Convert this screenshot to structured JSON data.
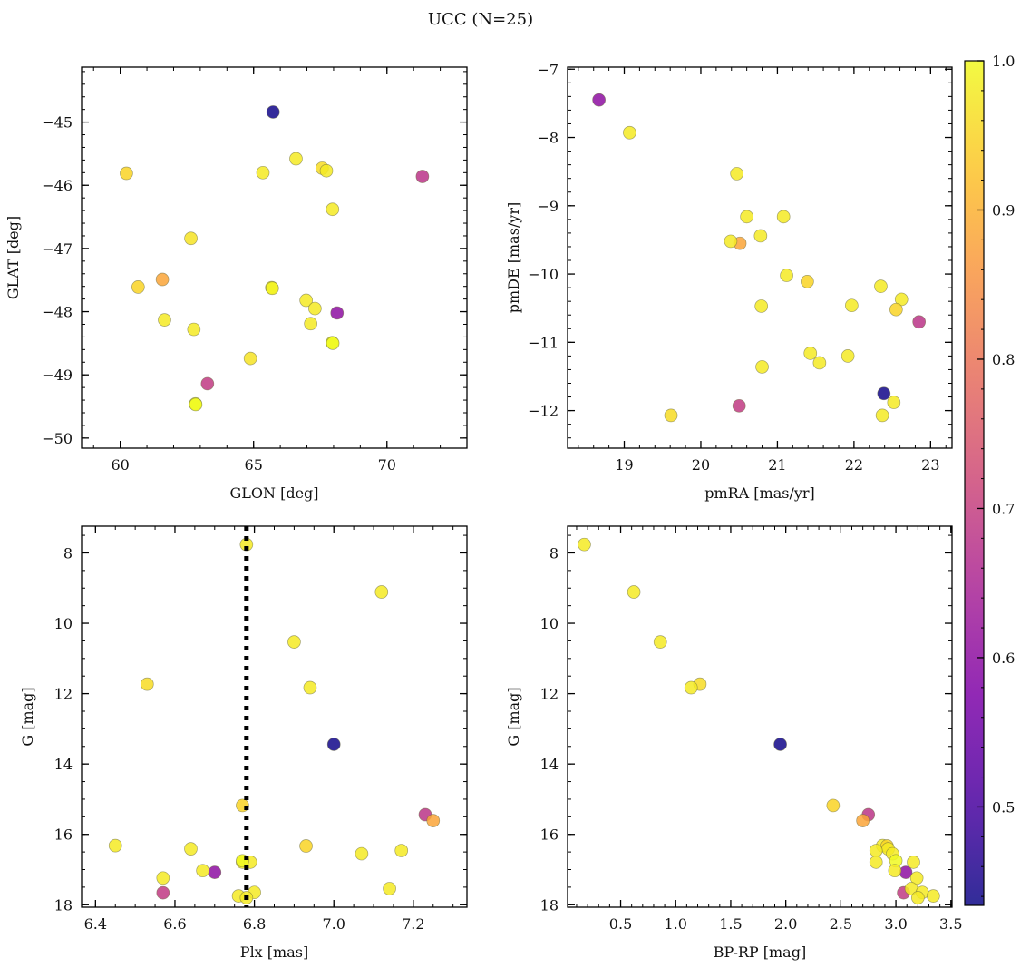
{
  "figure": {
    "title": "UCC (N=25)"
  },
  "colorbar": {
    "cmap": "plasma",
    "range": [
      0.434,
      1.0
    ],
    "ticks": [
      0.5,
      0.6,
      0.7,
      0.8,
      0.9,
      1.0
    ],
    "tick_labels": [
      "0.5",
      "0.6",
      "0.7",
      "0.8",
      "0.9",
      "1.0"
    ]
  },
  "chart_data": [
    {
      "type": "scatter",
      "xlabel": "GLON [deg]",
      "ylabel": "GLAT [deg]",
      "xlim": [
        58.55,
        73.0
      ],
      "ylim": [
        -50.16,
        -44.13
      ],
      "xticks": [
        60,
        65,
        70
      ],
      "xtick_labels": [
        "60",
        "65",
        "70"
      ],
      "yticks": [
        -50,
        -49,
        -48,
        -47,
        -46,
        -45
      ],
      "ytick_labels": [
        "−50",
        "−49",
        "−48",
        "−47",
        "−46",
        "−45"
      ],
      "grid": false,
      "x": [
        65.73,
        68.13,
        71.33,
        63.27,
        61.58,
        60.23,
        65.35,
        66.59,
        67.57,
        67.73,
        67.96,
        62.65,
        60.67,
        65.68,
        65.7,
        66.97,
        67.3,
        61.66,
        67.14,
        62.76,
        67.95,
        67.97,
        64.88,
        62.82,
        62.83
      ],
      "y": [
        -44.84,
        -48.02,
        -45.86,
        -49.14,
        -47.49,
        -45.81,
        -45.8,
        -45.58,
        -45.73,
        -45.77,
        -46.38,
        -46.84,
        -47.61,
        -47.62,
        -47.63,
        -47.82,
        -47.95,
        -48.13,
        -48.19,
        -48.28,
        -48.49,
        -48.5,
        -48.74,
        -49.46,
        -49.47
      ],
      "c": [
        0.44,
        0.6,
        0.68,
        0.69,
        0.88,
        0.95,
        0.98,
        0.98,
        0.96,
        0.98,
        0.98,
        0.97,
        0.95,
        0.99,
        0.99,
        0.98,
        0.98,
        0.98,
        0.98,
        0.98,
        1.0,
        1.0,
        0.97,
        1.0,
        1.0
      ]
    },
    {
      "type": "scatter",
      "xlabel": "pmRA [mas/yr]",
      "ylabel": "pmDE [mas/yr]",
      "xlim": [
        18.26,
        23.28
      ],
      "ylim": [
        -12.55,
        -6.97
      ],
      "xticks": [
        19,
        20,
        21,
        22,
        23
      ],
      "xtick_labels": [
        "19",
        "20",
        "21",
        "22",
        "23"
      ],
      "yticks": [
        -12,
        -11,
        -10,
        -9,
        -8,
        -7
      ],
      "ytick_labels": [
        "−12",
        "−11",
        "−10",
        "−9",
        "−8",
        "−7"
      ],
      "grid": false,
      "x": [
        22.39,
        18.67,
        22.85,
        20.5,
        20.51,
        19.07,
        20.47,
        20.6,
        21.08,
        20.39,
        20.78,
        21.12,
        21.39,
        22.35,
        22.62,
        22.55,
        21.97,
        20.79,
        21.43,
        21.55,
        21.92,
        20.8,
        22.52,
        19.61,
        22.37
      ],
      "y": [
        -11.75,
        -7.45,
        -10.7,
        -11.93,
        -9.55,
        -7.93,
        -8.53,
        -9.16,
        -9.16,
        -9.52,
        -9.44,
        -10.02,
        -10.11,
        -10.18,
        -10.37,
        -10.52,
        -10.46,
        -10.47,
        -11.16,
        -11.3,
        -11.2,
        -11.36,
        -11.88,
        -12.07,
        -12.07
      ],
      "c": [
        0.44,
        0.6,
        0.68,
        0.69,
        0.88,
        0.98,
        0.98,
        0.98,
        0.98,
        0.98,
        0.98,
        0.98,
        0.95,
        0.98,
        0.98,
        0.95,
        0.98,
        0.98,
        0.98,
        0.98,
        0.98,
        0.98,
        0.98,
        0.96,
        0.98
      ]
    },
    {
      "type": "scatter",
      "xlabel": "Plx [mas]",
      "ylabel": "G [mag]",
      "xlim": [
        6.365,
        7.335
      ],
      "ylim": [
        18.07,
        7.24
      ],
      "y_inverted": true,
      "xticks": [
        6.4,
        6.6,
        6.8,
        7.0,
        7.2
      ],
      "xtick_labels": [
        "6.4",
        "6.6",
        "6.8",
        "7.0",
        "7.2"
      ],
      "yticks": [
        8,
        10,
        12,
        14,
        16,
        18
      ],
      "ytick_labels": [
        "8",
        "10",
        "12",
        "14",
        "16",
        "18"
      ],
      "grid": false,
      "vline": {
        "x": 6.78,
        "style": "dotted",
        "color": "#000000"
      },
      "x": [
        7.0,
        6.7,
        7.23,
        6.57,
        7.25,
        6.78,
        7.12,
        6.9,
        6.53,
        6.94,
        6.77,
        6.45,
        6.93,
        6.64,
        7.17,
        7.07,
        6.77,
        6.79,
        6.77,
        6.67,
        6.57,
        7.14,
        6.8,
        6.76,
        6.78
      ],
      "y": [
        13.44,
        17.08,
        15.44,
        17.66,
        15.61,
        7.76,
        9.11,
        10.53,
        11.73,
        11.83,
        15.18,
        16.32,
        16.33,
        16.41,
        16.46,
        16.55,
        16.79,
        16.79,
        16.75,
        17.03,
        17.24,
        17.54,
        17.65,
        17.75,
        17.8
      ],
      "c": [
        0.44,
        0.6,
        0.68,
        0.69,
        0.88,
        0.98,
        0.98,
        0.98,
        0.96,
        0.98,
        0.95,
        0.98,
        0.95,
        0.98,
        0.98,
        0.98,
        0.98,
        0.98,
        1.0,
        0.98,
        0.98,
        0.98,
        0.98,
        0.98,
        0.98
      ]
    },
    {
      "type": "scatter",
      "xlabel": "BP-RP [mag]",
      "ylabel": "G [mag]",
      "xlim": [
        0.018,
        3.51
      ],
      "ylim": [
        18.07,
        7.24
      ],
      "y_inverted": true,
      "xticks": [
        0.5,
        1.0,
        1.5,
        2.0,
        2.5,
        3.0,
        3.5
      ],
      "xtick_labels": [
        "0.5",
        "1.0",
        "1.5",
        "2.0",
        "2.5",
        "3.0",
        "3.5"
      ],
      "yticks": [
        8,
        10,
        12,
        14,
        16,
        18
      ],
      "ytick_labels": [
        "8",
        "10",
        "12",
        "14",
        "16",
        "18"
      ],
      "grid": false,
      "x": [
        1.95,
        3.09,
        2.75,
        3.07,
        2.7,
        0.17,
        0.62,
        0.86,
        1.22,
        1.14,
        2.43,
        2.88,
        2.92,
        2.93,
        2.82,
        2.97,
        2.82,
        3.16,
        3.0,
        2.99,
        3.19,
        3.14,
        3.24,
        3.34,
        3.2
      ],
      "y": [
        13.44,
        17.08,
        15.44,
        17.66,
        15.61,
        7.76,
        9.11,
        10.53,
        11.73,
        11.83,
        15.18,
        16.32,
        16.33,
        16.41,
        16.46,
        16.55,
        16.79,
        16.79,
        16.75,
        17.03,
        17.24,
        17.54,
        17.65,
        17.75,
        17.8
      ],
      "c": [
        0.44,
        0.6,
        0.68,
        0.69,
        0.88,
        0.98,
        0.98,
        0.98,
        0.96,
        0.98,
        0.95,
        0.98,
        0.95,
        0.98,
        0.98,
        0.98,
        0.98,
        0.98,
        1.0,
        0.98,
        0.98,
        0.98,
        0.98,
        0.98,
        0.98
      ]
    }
  ]
}
